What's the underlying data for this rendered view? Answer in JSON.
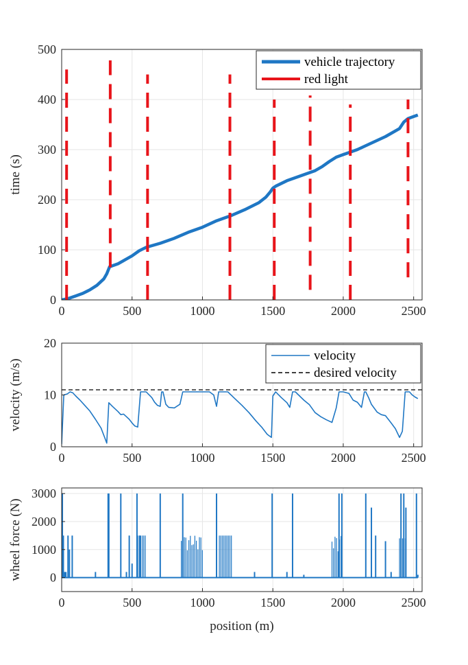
{
  "chart_data": [
    {
      "type": "line",
      "id": "trajectory",
      "xlabel": "",
      "ylabel": "time (s)",
      "xlim": [
        0,
        2560
      ],
      "ylim": [
        0,
        500
      ],
      "xticks": [
        0,
        500,
        1000,
        1500,
        2000,
        2500
      ],
      "yticks": [
        0,
        100,
        200,
        300,
        400,
        500
      ],
      "legend": {
        "position": "top-right",
        "entries": [
          "vehicle trajectory",
          "red light"
        ]
      },
      "series": [
        {
          "name": "vehicle trajectory",
          "color": "#1f77c4",
          "x": [
            0,
            50,
            100,
            150,
            200,
            250,
            300,
            320,
            340,
            400,
            450,
            500,
            550,
            600,
            700,
            800,
            900,
            1000,
            1100,
            1200,
            1300,
            1400,
            1450,
            1480,
            1500,
            1520,
            1600,
            1700,
            1800,
            1850,
            1900,
            1950,
            2000,
            2100,
            2200,
            2300,
            2400,
            2430,
            2460,
            2500,
            2530
          ],
          "y": [
            0,
            3,
            8,
            13,
            20,
            29,
            42,
            52,
            66,
            72,
            80,
            88,
            98,
            105,
            113,
            123,
            135,
            145,
            158,
            168,
            180,
            194,
            205,
            215,
            223,
            227,
            238,
            248,
            258,
            266,
            276,
            285,
            290,
            300,
            313,
            326,
            342,
            355,
            362,
            366,
            369
          ]
        },
        {
          "name": "red light",
          "color": "#e8141a",
          "style": "dashed",
          "segments": [
            {
              "x": 35,
              "y": [
                0,
                460
              ]
            },
            {
              "x": 345,
              "y": [
                65,
                478
              ]
            },
            {
              "x": 610,
              "y": [
                0,
                450
              ]
            },
            {
              "x": 1195,
              "y": [
                0,
                450
              ]
            },
            {
              "x": 1510,
              "y": [
                0,
                400
              ]
            },
            {
              "x": 1765,
              "y": [
                20,
                408
              ]
            },
            {
              "x": 2050,
              "y": [
                0,
                390
              ]
            },
            {
              "x": 2460,
              "y": [
                45,
                400
              ]
            }
          ]
        }
      ]
    },
    {
      "type": "line",
      "id": "velocity",
      "xlabel": "",
      "ylabel": "velocity (m/s)",
      "xlim": [
        0,
        2560
      ],
      "ylim": [
        0,
        20
      ],
      "xticks": [
        0,
        500,
        1000,
        1500,
        2000,
        2500
      ],
      "yticks": [
        0,
        10,
        20
      ],
      "legend": {
        "position": "top-right",
        "entries": [
          "velocity",
          "desired velocity"
        ]
      },
      "series": [
        {
          "name": "velocity",
          "color": "#1f77c4",
          "x": [
            0,
            15,
            40,
            60,
            80,
            100,
            130,
            160,
            200,
            240,
            280,
            305,
            320,
            335,
            360,
            400,
            420,
            440,
            460,
            480,
            500,
            520,
            540,
            560,
            600,
            640,
            660,
            680,
            700,
            710,
            720,
            740,
            760,
            800,
            840,
            860,
            880,
            900,
            960,
            1000,
            1050,
            1080,
            1100,
            1115,
            1140,
            1180,
            1230,
            1280,
            1330,
            1380,
            1420,
            1460,
            1490,
            1500,
            1520,
            1560,
            1600,
            1620,
            1640,
            1660,
            1690,
            1720,
            1760,
            1800,
            1840,
            1880,
            1920,
            1950,
            1970,
            2000,
            2040,
            2070,
            2100,
            2130,
            2150,
            2160,
            2180,
            2200,
            2240,
            2270,
            2300,
            2340,
            2370,
            2400,
            2420,
            2440,
            2470,
            2490,
            2510,
            2530
          ],
          "y": [
            0.5,
            10.0,
            10.2,
            10.6,
            10.4,
            9.8,
            9.0,
            8.1,
            6.9,
            5.3,
            3.6,
            1.8,
            0.7,
            8.5,
            7.8,
            6.8,
            6.2,
            6.3,
            5.8,
            5.3,
            4.6,
            4.0,
            3.8,
            10.6,
            10.6,
            9.5,
            8.6,
            8.0,
            7.8,
            10.6,
            10.6,
            8.2,
            7.6,
            7.5,
            8.2,
            10.6,
            10.6,
            10.6,
            10.6,
            10.6,
            10.6,
            10.0,
            7.8,
            10.6,
            10.6,
            10.6,
            9.3,
            8.0,
            6.6,
            5.0,
            3.8,
            2.4,
            1.8,
            9.8,
            10.6,
            9.5,
            8.5,
            7.6,
            10.6,
            10.6,
            9.8,
            9.0,
            8.1,
            6.6,
            5.8,
            5.2,
            4.7,
            7.5,
            10.6,
            10.6,
            10.3,
            9.0,
            8.6,
            7.6,
            10.6,
            10.6,
            9.5,
            8.2,
            6.7,
            6.2,
            6.0,
            4.6,
            3.5,
            1.8,
            3.0,
            10.6,
            10.6,
            10.0,
            9.6,
            9.3
          ]
        },
        {
          "name": "desired velocity",
          "color": "#000000",
          "style": "dashed",
          "x": [
            0,
            2560
          ],
          "y": [
            11,
            11
          ]
        }
      ]
    },
    {
      "type": "line",
      "id": "force",
      "xlabel": "position (m)",
      "ylabel": "wheel force (N)",
      "xlim": [
        0,
        2560
      ],
      "ylim": [
        -500,
        3200
      ],
      "xticks": [
        0,
        500,
        1000,
        1500,
        2000,
        2500
      ],
      "yticks": [
        0,
        1000,
        2000,
        3000
      ],
      "series": [
        {
          "name": "wheel force",
          "color": "#1f77c4",
          "spikes": [
            {
              "x": 5,
              "v": 3000
            },
            {
              "x": 12,
              "v": 1500
            },
            {
              "x": 22,
              "v": 200
            },
            {
              "x": 30,
              "v": 200
            },
            {
              "x": 45,
              "v": 1500
            },
            {
              "x": 55,
              "v": 1000
            },
            {
              "x": 75,
              "v": 1500
            },
            {
              "x": 240,
              "v": 200
            },
            {
              "x": 330,
              "v": 3000
            },
            {
              "x": 335,
              "v": 3000
            },
            {
              "x": 420,
              "v": 3000
            },
            {
              "x": 460,
              "v": 200
            },
            {
              "x": 480,
              "v": 1500
            },
            {
              "x": 500,
              "v": 500
            },
            {
              "x": 535,
              "v": 3000
            },
            {
              "x": 555,
              "v": 1500
            },
            {
              "x": 700,
              "v": 3000
            },
            {
              "x": 860,
              "v": 3000
            },
            {
              "x": 1100,
              "v": 3000
            },
            {
              "x": 1370,
              "v": 200
            },
            {
              "x": 1495,
              "v": 3000
            },
            {
              "x": 1600,
              "v": 200
            },
            {
              "x": 1640,
              "v": 3000
            },
            {
              "x": 1720,
              "v": 100
            },
            {
              "x": 1970,
              "v": 3000
            },
            {
              "x": 1990,
              "v": 3000
            },
            {
              "x": 2160,
              "v": 3000
            },
            {
              "x": 2200,
              "v": 2500
            },
            {
              "x": 2230,
              "v": 1500
            },
            {
              "x": 2300,
              "v": 1300
            },
            {
              "x": 2340,
              "v": 200
            },
            {
              "x": 2410,
              "v": 3000
            },
            {
              "x": 2430,
              "v": 3000
            },
            {
              "x": 2445,
              "v": 2500
            },
            {
              "x": 2520,
              "v": 3000
            },
            {
              "x": 2530,
              "v": 100
            }
          ],
          "bands": [
            {
              "x1": 540,
              "x2": 600,
              "v": 1500
            },
            {
              "x1": 850,
              "x2": 1010,
              "v": 1500
            },
            {
              "x1": 1120,
              "x2": 1210,
              "v": 1500
            },
            {
              "x1": 1920,
              "x2": 1985,
              "v": 1500
            },
            {
              "x1": 2400,
              "x2": 2450,
              "v": 1400
            }
          ]
        }
      ]
    }
  ]
}
